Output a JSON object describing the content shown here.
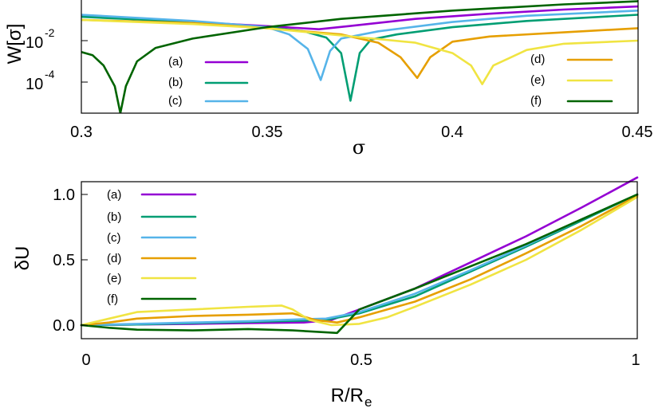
{
  "chart_data": [
    {
      "type": "line",
      "id": "top",
      "xlabel": "σ",
      "ylabel": "W[σ]",
      "xlim": [
        0.3,
        0.45
      ],
      "ylim_log10": [
        -5.5,
        0.2
      ],
      "yscale": "log",
      "x_ticks": [
        0.3,
        0.35,
        0.4,
        0.45
      ],
      "x_tick_labels": [
        "0.3",
        "0.35",
        "0.4",
        "0.45"
      ],
      "y_ticks": [
        {
          "value_log10": -2,
          "base": "10",
          "exp": "-2"
        },
        {
          "value_log10": -4,
          "base": "10",
          "exp": "-4"
        }
      ],
      "series": [
        {
          "name": "(a)",
          "color": "#9400d3",
          "points": [
            [
              0.3,
              -0.8
            ],
            [
              0.33,
              -1.1
            ],
            [
              0.35,
              -1.3
            ],
            [
              0.364,
              -1.45
            ],
            [
              0.372,
              -1.3
            ],
            [
              0.39,
              -0.95
            ],
            [
              0.41,
              -0.7
            ],
            [
              0.43,
              -0.5
            ],
            [
              0.45,
              -0.35
            ]
          ]
        },
        {
          "name": "(b)",
          "color": "#009e73",
          "points": [
            [
              0.3,
              -0.85
            ],
            [
              0.33,
              -1.1
            ],
            [
              0.35,
              -1.35
            ],
            [
              0.36,
              -1.55
            ],
            [
              0.366,
              -1.85
            ],
            [
              0.37,
              -2.6
            ],
            [
              0.3725,
              -4.9
            ],
            [
              0.375,
              -2.6
            ],
            [
              0.378,
              -1.95
            ],
            [
              0.385,
              -1.7
            ],
            [
              0.4,
              -1.35
            ],
            [
              0.42,
              -1.05
            ],
            [
              0.45,
              -0.75
            ]
          ]
        },
        {
          "name": "(c)",
          "color": "#56b4e9",
          "points": [
            [
              0.3,
              -0.75
            ],
            [
              0.33,
              -1.05
            ],
            [
              0.35,
              -1.35
            ],
            [
              0.356,
              -1.7
            ],
            [
              0.361,
              -2.4
            ],
            [
              0.3645,
              -3.9
            ],
            [
              0.367,
              -2.5
            ],
            [
              0.37,
              -1.9
            ],
            [
              0.38,
              -1.55
            ],
            [
              0.4,
              -1.1
            ],
            [
              0.42,
              -0.8
            ],
            [
              0.45,
              -0.55
            ]
          ]
        },
        {
          "name": "(d)",
          "color": "#e69f00",
          "points": [
            [
              0.3,
              -1.0
            ],
            [
              0.33,
              -1.15
            ],
            [
              0.35,
              -1.4
            ],
            [
              0.37,
              -1.7
            ],
            [
              0.38,
              -2.1
            ],
            [
              0.386,
              -2.8
            ],
            [
              0.3905,
              -3.8
            ],
            [
              0.394,
              -2.8
            ],
            [
              0.4,
              -2.05
            ],
            [
              0.41,
              -1.8
            ],
            [
              0.43,
              -1.6
            ],
            [
              0.45,
              -1.4
            ]
          ]
        },
        {
          "name": "(e)",
          "color": "#f0e442",
          "points": [
            [
              0.3,
              -1.0
            ],
            [
              0.33,
              -1.2
            ],
            [
              0.35,
              -1.4
            ],
            [
              0.37,
              -1.75
            ],
            [
              0.39,
              -2.1
            ],
            [
              0.4,
              -2.6
            ],
            [
              0.405,
              -3.2
            ],
            [
              0.408,
              -4.1
            ],
            [
              0.411,
              -3.2
            ],
            [
              0.42,
              -2.45
            ],
            [
              0.43,
              -2.15
            ],
            [
              0.45,
              -2.0
            ]
          ]
        },
        {
          "name": "(f)",
          "color": "#006400",
          "points": [
            [
              0.3,
              -2.55
            ],
            [
              0.303,
              -2.7
            ],
            [
              0.306,
              -3.2
            ],
            [
              0.309,
              -4.2
            ],
            [
              0.3105,
              -5.5
            ],
            [
              0.312,
              -4.2
            ],
            [
              0.315,
              -3.0
            ],
            [
              0.32,
              -2.35
            ],
            [
              0.33,
              -1.9
            ],
            [
              0.35,
              -1.35
            ],
            [
              0.37,
              -0.95
            ],
            [
              0.4,
              -0.55
            ],
            [
              0.43,
              -0.25
            ],
            [
              0.45,
              -0.1
            ]
          ]
        }
      ],
      "legend": [
        {
          "label": "(a)",
          "color": "#9400d3",
          "placement": "left"
        },
        {
          "label": "(b)",
          "color": "#009e73",
          "placement": "left"
        },
        {
          "label": "(c)",
          "color": "#56b4e9",
          "placement": "left"
        },
        {
          "label": "(d)",
          "color": "#e69f00",
          "placement": "right"
        },
        {
          "label": "(e)",
          "color": "#f0e442",
          "placement": "right"
        },
        {
          "label": "(f)",
          "color": "#006400",
          "placement": "right"
        }
      ]
    },
    {
      "type": "line",
      "id": "bottom",
      "xlabel": "R/R",
      "xlabel_sub": "e",
      "ylabel": "δU",
      "xlim": [
        0,
        1
      ],
      "ylim": [
        -0.1,
        1.1
      ],
      "x_ticks": [
        0,
        0.5,
        1
      ],
      "x_tick_labels": [
        "0",
        "0.5",
        "1"
      ],
      "y_ticks": [
        0,
        0.5,
        1
      ],
      "y_tick_labels": [
        "0.0",
        "0.5",
        "1.0"
      ],
      "series": [
        {
          "name": "(a)",
          "color": "#9400d3",
          "points": [
            [
              0,
              0
            ],
            [
              0.1,
              0.005
            ],
            [
              0.2,
              0.01
            ],
            [
              0.3,
              0.015
            ],
            [
              0.4,
              0.02
            ],
            [
              0.45,
              0.04
            ],
            [
              0.5,
              0.12
            ],
            [
              0.6,
              0.28
            ],
            [
              0.7,
              0.48
            ],
            [
              0.8,
              0.68
            ],
            [
              0.9,
              0.9
            ],
            [
              1.0,
              1.13
            ]
          ]
        },
        {
          "name": "(b)",
          "color": "#009e73",
          "points": [
            [
              0,
              0
            ],
            [
              0.1,
              0.005
            ],
            [
              0.2,
              0.015
            ],
            [
              0.3,
              0.025
            ],
            [
              0.4,
              0.035
            ],
            [
              0.44,
              0.04
            ],
            [
              0.5,
              0.09
            ],
            [
              0.6,
              0.22
            ],
            [
              0.7,
              0.41
            ],
            [
              0.8,
              0.6
            ],
            [
              0.9,
              0.8
            ],
            [
              1.0,
              1.0
            ]
          ]
        },
        {
          "name": "(c)",
          "color": "#56b4e9",
          "points": [
            [
              0,
              0
            ],
            [
              0.1,
              0.01
            ],
            [
              0.2,
              0.02
            ],
            [
              0.3,
              0.03
            ],
            [
              0.4,
              0.045
            ],
            [
              0.44,
              0.05
            ],
            [
              0.5,
              0.1
            ],
            [
              0.6,
              0.24
            ],
            [
              0.7,
              0.42
            ],
            [
              0.8,
              0.61
            ],
            [
              0.9,
              0.81
            ],
            [
              1.0,
              1.0
            ]
          ]
        },
        {
          "name": "(d)",
          "color": "#e69f00",
          "points": [
            [
              0,
              0
            ],
            [
              0.05,
              0.02
            ],
            [
              0.1,
              0.05
            ],
            [
              0.2,
              0.07
            ],
            [
              0.3,
              0.08
            ],
            [
              0.38,
              0.09
            ],
            [
              0.42,
              0.04
            ],
            [
              0.46,
              0.02
            ],
            [
              0.5,
              0.06
            ],
            [
              0.6,
              0.18
            ],
            [
              0.7,
              0.35
            ],
            [
              0.8,
              0.55
            ],
            [
              0.9,
              0.76
            ],
            [
              1.0,
              0.99
            ]
          ]
        },
        {
          "name": "(e)",
          "color": "#f0e442",
          "points": [
            [
              0,
              0
            ],
            [
              0.05,
              0.05
            ],
            [
              0.1,
              0.1
            ],
            [
              0.2,
              0.12
            ],
            [
              0.3,
              0.14
            ],
            [
              0.36,
              0.15
            ],
            [
              0.38,
              0.12
            ],
            [
              0.41,
              0.04
            ],
            [
              0.45,
              0.0
            ],
            [
              0.5,
              0.01
            ],
            [
              0.55,
              0.06
            ],
            [
              0.6,
              0.14
            ],
            [
              0.7,
              0.31
            ],
            [
              0.8,
              0.5
            ],
            [
              0.9,
              0.73
            ],
            [
              1.0,
              0.98
            ]
          ]
        },
        {
          "name": "(f)",
          "color": "#006400",
          "points": [
            [
              0,
              0
            ],
            [
              0.05,
              -0.02
            ],
            [
              0.1,
              -0.035
            ],
            [
              0.2,
              -0.04
            ],
            [
              0.3,
              -0.03
            ],
            [
              0.38,
              -0.04
            ],
            [
              0.46,
              -0.06
            ],
            [
              0.5,
              0.12
            ],
            [
              0.6,
              0.28
            ],
            [
              0.7,
              0.45
            ],
            [
              0.8,
              0.62
            ],
            [
              0.9,
              0.81
            ],
            [
              1.0,
              1.0
            ]
          ]
        }
      ],
      "legend": [
        {
          "label": "(a)",
          "color": "#9400d3",
          "placement": "top-left"
        },
        {
          "label": "(b)",
          "color": "#009e73",
          "placement": "top-left"
        },
        {
          "label": "(c)",
          "color": "#56b4e9",
          "placement": "top-left"
        },
        {
          "label": "(d)",
          "color": "#e69f00",
          "placement": "top-left"
        },
        {
          "label": "(e)",
          "color": "#f0e442",
          "placement": "top-left"
        },
        {
          "label": "(f)",
          "color": "#006400",
          "placement": "top-left"
        }
      ]
    }
  ]
}
